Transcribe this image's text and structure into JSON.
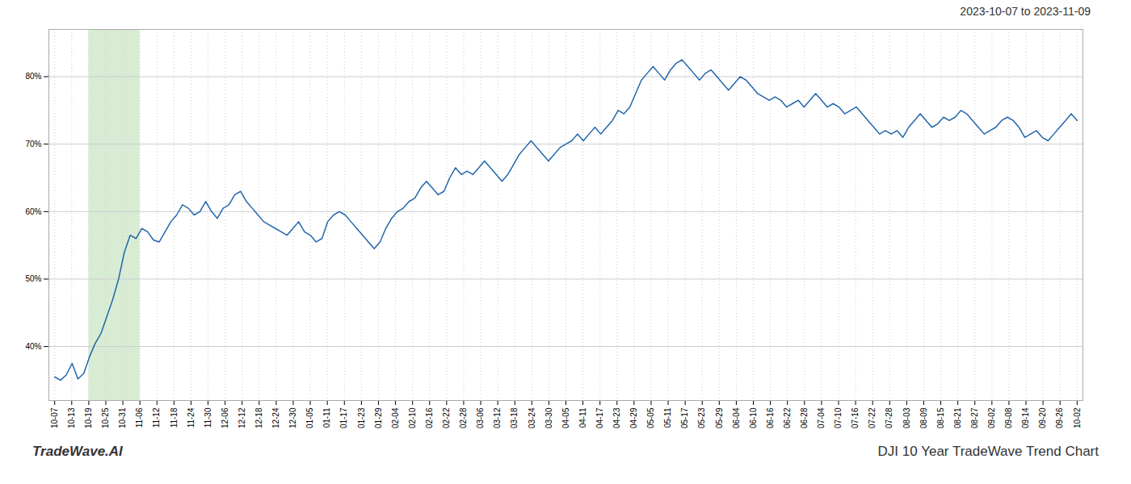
{
  "chart_data": {
    "type": "line",
    "title": "2023-10-07 to 2023-11-09",
    "annotations": [
      "TradeWave.AI",
      "DJI 10 Year TradeWave Trend Chart"
    ],
    "color": "#2266aa",
    "grid": true,
    "xlim": [
      -1,
      177
    ],
    "xticks": [
      {
        "value": 0,
        "label": "10-07"
      },
      {
        "value": 2.9333,
        "label": "10-13"
      },
      {
        "value": 5.8667,
        "label": "10-19"
      },
      {
        "value": 8.8,
        "label": "10-25"
      },
      {
        "value": 11.7333,
        "label": "10-31"
      },
      {
        "value": 14.6667,
        "label": "11-06"
      },
      {
        "value": 17.6,
        "label": "11-12"
      },
      {
        "value": 20.5333,
        "label": "11-18"
      },
      {
        "value": 23.4667,
        "label": "11-24"
      },
      {
        "value": 26.4,
        "label": "11-30"
      },
      {
        "value": 29.3333,
        "label": "12-06"
      },
      {
        "value": 32.2667,
        "label": "12-12"
      },
      {
        "value": 35.2,
        "label": "12-18"
      },
      {
        "value": 38.1333,
        "label": "12-24"
      },
      {
        "value": 41.0667,
        "label": "12-30"
      },
      {
        "value": 44,
        "label": "01-05"
      },
      {
        "value": 46.9333,
        "label": "01-11"
      },
      {
        "value": 49.8667,
        "label": "01-17"
      },
      {
        "value": 52.8,
        "label": "01-23"
      },
      {
        "value": 55.7333,
        "label": "01-29"
      },
      {
        "value": 58.6667,
        "label": "02-04"
      },
      {
        "value": 61.6,
        "label": "02-10"
      },
      {
        "value": 64.5333,
        "label": "02-16"
      },
      {
        "value": 67.4667,
        "label": "02-22"
      },
      {
        "value": 70.4,
        "label": "02-28"
      },
      {
        "value": 73.3333,
        "label": "03-06"
      },
      {
        "value": 76.2667,
        "label": "03-12"
      },
      {
        "value": 79.2,
        "label": "03-18"
      },
      {
        "value": 82.1333,
        "label": "03-24"
      },
      {
        "value": 85.0667,
        "label": "03-30"
      },
      {
        "value": 88,
        "label": "04-05"
      },
      {
        "value": 90.9333,
        "label": "04-11"
      },
      {
        "value": 93.8667,
        "label": "04-17"
      },
      {
        "value": 96.8,
        "label": "04-23"
      },
      {
        "value": 99.7333,
        "label": "04-29"
      },
      {
        "value": 102.6667,
        "label": "05-05"
      },
      {
        "value": 105.6,
        "label": "05-11"
      },
      {
        "value": 108.5333,
        "label": "05-17"
      },
      {
        "value": 111.4667,
        "label": "05-23"
      },
      {
        "value": 114.4,
        "label": "05-29"
      },
      {
        "value": 117.3333,
        "label": "06-04"
      },
      {
        "value": 120.2667,
        "label": "06-10"
      },
      {
        "value": 123.2,
        "label": "06-16"
      },
      {
        "value": 126.1333,
        "label": "06-22"
      },
      {
        "value": 129.0667,
        "label": "06-28"
      },
      {
        "value": 132,
        "label": "07-04"
      },
      {
        "value": 134.9333,
        "label": "07-10"
      },
      {
        "value": 137.8667,
        "label": "07-16"
      },
      {
        "value": 140.8,
        "label": "07-22"
      },
      {
        "value": 143.7333,
        "label": "07-28"
      },
      {
        "value": 146.6667,
        "label": "08-03"
      },
      {
        "value": 149.6,
        "label": "08-09"
      },
      {
        "value": 152.5333,
        "label": "08-15"
      },
      {
        "value": 155.4667,
        "label": "08-21"
      },
      {
        "value": 158.4,
        "label": "08-27"
      },
      {
        "value": 161.3333,
        "label": "09-02"
      },
      {
        "value": 164.2667,
        "label": "09-08"
      },
      {
        "value": 167.2,
        "label": "09-14"
      },
      {
        "value": 170.1333,
        "label": "09-20"
      },
      {
        "value": 173.0667,
        "label": "09-26"
      },
      {
        "value": 176,
        "label": "10-02"
      }
    ],
    "ylim": [
      32,
      87
    ],
    "yticks": [
      {
        "value": 40,
        "label": "40%"
      },
      {
        "value": 50,
        "label": "50%"
      },
      {
        "value": 60,
        "label": "60%"
      },
      {
        "value": 70,
        "label": "70%"
      },
      {
        "value": 80,
        "label": "80%"
      }
    ],
    "span": {
      "from": "10-19",
      "to": "11-06",
      "color": "#d8ecd4"
    },
    "values": [
      35.5,
      35.0,
      35.8,
      37.5,
      35.2,
      36.0,
      38.5,
      40.5,
      42.0,
      44.5,
      47.0,
      50.0,
      54.0,
      56.5,
      56.0,
      57.5,
      57.0,
      55.8,
      55.5,
      57.0,
      58.5,
      59.5,
      61.0,
      60.5,
      59.5,
      60.0,
      61.5,
      60.0,
      59.0,
      60.5,
      61.0,
      62.5,
      63.0,
      61.5,
      60.5,
      59.5,
      58.5,
      58.0,
      57.5,
      57.0,
      56.5,
      57.5,
      58.5,
      57.0,
      56.5,
      55.5,
      56.0,
      58.5,
      59.5,
      60.0,
      59.5,
      58.5,
      57.5,
      56.5,
      55.5,
      54.5,
      55.5,
      57.5,
      59.0,
      60.0,
      60.5,
      61.5,
      62.0,
      63.5,
      64.5,
      63.5,
      62.5,
      63.0,
      65.0,
      66.5,
      65.5,
      66.0,
      65.5,
      66.5,
      67.5,
      66.5,
      65.5,
      64.5,
      65.5,
      67.0,
      68.5,
      69.5,
      70.5,
      69.5,
      68.5,
      67.5,
      68.5,
      69.5,
      70.0,
      70.5,
      71.5,
      70.5,
      71.5,
      72.5,
      71.5,
      72.5,
      73.5,
      75.0,
      74.5,
      75.5,
      77.5,
      79.5,
      80.5,
      81.5,
      80.5,
      79.5,
      81.0,
      82.0,
      82.5,
      81.5,
      80.5,
      79.5,
      80.5,
      81.0,
      80.0,
      79.0,
      78.0,
      79.0,
      80.0,
      79.5,
      78.5,
      77.5,
      77.0,
      76.5,
      77.0,
      76.5,
      75.5,
      76.0,
      76.5,
      75.5,
      76.5,
      77.5,
      76.5,
      75.5,
      76.0,
      75.5,
      74.5,
      75.0,
      75.5,
      74.5,
      73.5,
      72.5,
      71.5,
      72.0,
      71.5,
      72.0,
      71.0,
      72.5,
      73.5,
      74.5,
      73.5,
      72.5,
      73.0,
      74.0,
      73.5,
      74.0,
      75.0,
      74.5,
      73.5,
      72.5,
      71.5,
      72.0,
      72.5,
      73.5,
      74.0,
      73.5,
      72.5,
      71.0,
      71.5,
      72.0,
      71.0,
      70.5,
      71.5,
      72.5,
      73.5,
      74.5,
      73.5
    ]
  }
}
